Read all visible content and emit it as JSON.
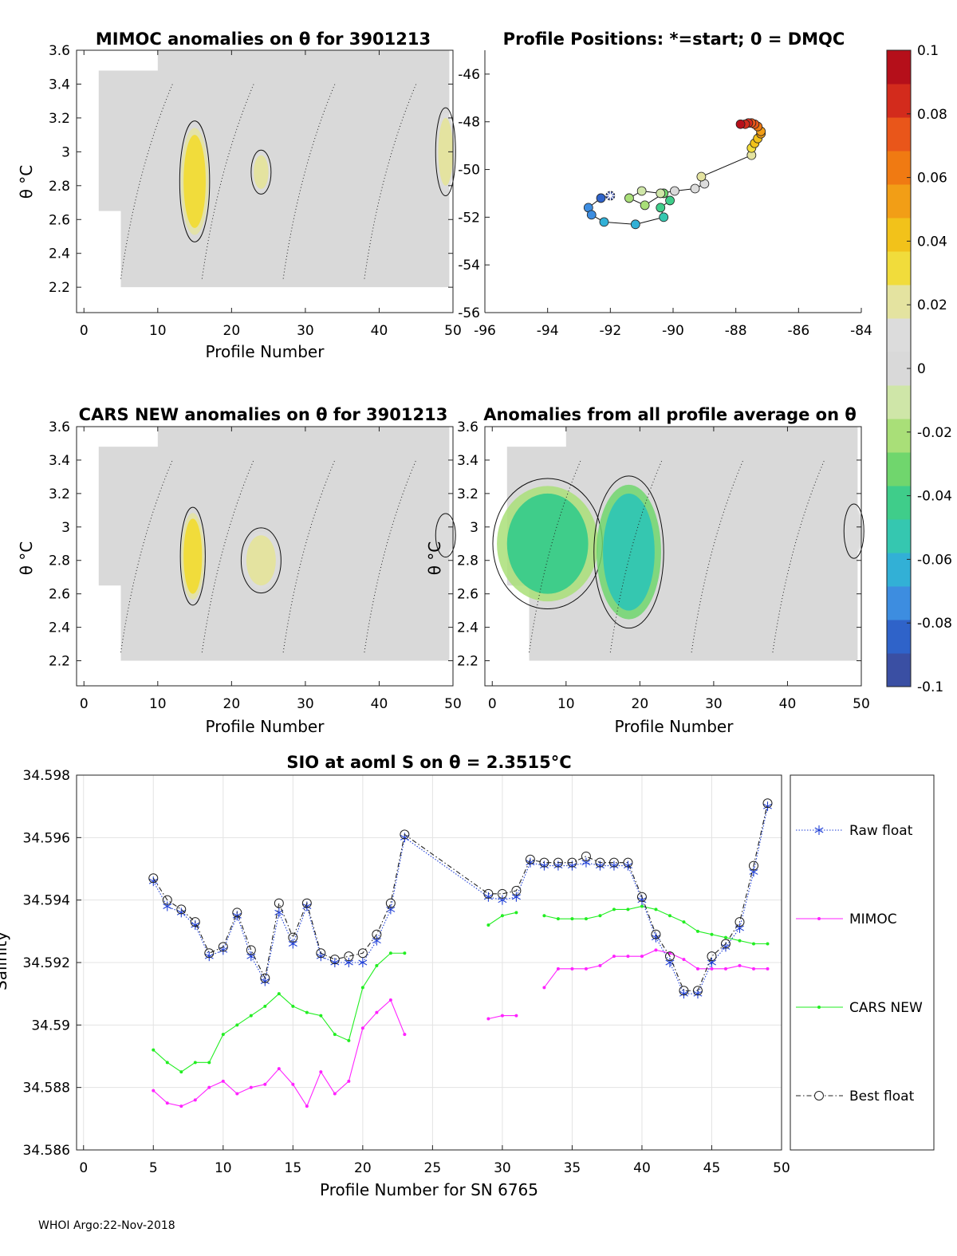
{
  "footer": "WHOI Argo:22-Nov-2018",
  "colorbar": {
    "ticks": [
      "0.1",
      "0.08",
      "0.06",
      "0.04",
      "0.02",
      "0",
      "-0.02",
      "-0.04",
      "-0.06",
      "-0.08",
      "-0.1"
    ],
    "colors": [
      "#3a4fa3",
      "#2f63c9",
      "#3d8de0",
      "#32b0d6",
      "#35c7b0",
      "#3fcd8a",
      "#70d66d",
      "#a9df78",
      "#cfe6a8",
      "#d9d9d9",
      "#dcdcdc",
      "#e4e3a0",
      "#f1dc3b",
      "#f2c21a",
      "#f29e16",
      "#f07a12",
      "#e9561a",
      "#d32b1c",
      "#b50f1a"
    ]
  },
  "chart_data": [
    {
      "type": "heatmap",
      "title": "MIMOC anomalies on θ  for 3901213",
      "xlabel": "Profile Number",
      "ylabel": "θ °C",
      "xlim": [
        -1,
        50
      ],
      "ylim": [
        2.05,
        3.6
      ],
      "xticks": [
        "0",
        "10",
        "20",
        "30",
        "40",
        "50"
      ],
      "yticks": [
        "2.2",
        "2.4",
        "2.6",
        "2.8",
        "3",
        "3.2",
        "3.4",
        "3.6"
      ],
      "features": [
        {
          "x0": 13.5,
          "x1": 16.5,
          "y0": 2.55,
          "y1": 3.1,
          "level": 0.03
        },
        {
          "x0": 23,
          "x1": 25,
          "y0": 2.78,
          "y1": 2.98,
          "level": 0.025
        },
        {
          "x0": 48,
          "x1": 50,
          "y0": 2.8,
          "y1": 3.2,
          "level": 0.02
        }
      ]
    },
    {
      "type": "scatter",
      "title": "Profile Positions: *=start; 0 = DMQC",
      "xlim": [
        -96,
        -84
      ],
      "ylim": [
        -56,
        -45
      ],
      "xticks": [
        "-96",
        "-94",
        "-92",
        "-90",
        "-88",
        "-86",
        "-84"
      ],
      "yticks": [
        "-46",
        "-48",
        "-50",
        "-52",
        "-54",
        "-56"
      ],
      "points": [
        {
          "lon": -92.0,
          "lat": -51.1
        },
        {
          "lon": -92.3,
          "lat": -51.2
        },
        {
          "lon": -92.7,
          "lat": -51.6
        },
        {
          "lon": -92.6,
          "lat": -51.9
        },
        {
          "lon": -92.2,
          "lat": -52.2
        },
        {
          "lon": -91.2,
          "lat": -52.3
        },
        {
          "lon": -90.3,
          "lat": -52.0
        },
        {
          "lon": -90.4,
          "lat": -51.6
        },
        {
          "lon": -90.1,
          "lat": -51.3
        },
        {
          "lon": -90.3,
          "lat": -51.0
        },
        {
          "lon": -90.9,
          "lat": -51.5
        },
        {
          "lon": -91.4,
          "lat": -51.2
        },
        {
          "lon": -91.0,
          "lat": -50.9
        },
        {
          "lon": -90.4,
          "lat": -51.0
        },
        {
          "lon": -89.95,
          "lat": -50.9
        },
        {
          "lon": -89.3,
          "lat": -50.8
        },
        {
          "lon": -89.0,
          "lat": -50.6
        },
        {
          "lon": -89.1,
          "lat": -50.3
        },
        {
          "lon": -87.5,
          "lat": -49.4
        },
        {
          "lon": -87.5,
          "lat": -49.1
        },
        {
          "lon": -87.4,
          "lat": -48.9
        },
        {
          "lon": -87.3,
          "lat": -48.7
        },
        {
          "lon": -87.2,
          "lat": -48.5
        },
        {
          "lon": -87.2,
          "lat": -48.4
        },
        {
          "lon": -87.3,
          "lat": -48.2
        },
        {
          "lon": -87.4,
          "lat": -48.1
        },
        {
          "lon": -87.5,
          "lat": -48.05
        },
        {
          "lon": -87.6,
          "lat": -48.05
        },
        {
          "lon": -87.7,
          "lat": -48.1
        },
        {
          "lon": -87.85,
          "lat": -48.1
        }
      ]
    },
    {
      "type": "heatmap",
      "title": "CARS NEW anomalies on θ for 3901213",
      "xlabel": "Profile Number",
      "ylabel": "θ °C",
      "xlim": [
        -1,
        50
      ],
      "ylim": [
        2.05,
        3.6
      ],
      "xticks": [
        "0",
        "10",
        "20",
        "30",
        "40",
        "50"
      ],
      "yticks": [
        "2.2",
        "2.4",
        "2.6",
        "2.8",
        "3",
        "3.2",
        "3.4",
        "3.6"
      ],
      "features": [
        {
          "x0": 13.5,
          "x1": 16,
          "y0": 2.6,
          "y1": 3.05,
          "level": 0.03
        },
        {
          "x0": 22,
          "x1": 26,
          "y0": 2.65,
          "y1": 2.95,
          "level": 0.025
        },
        {
          "x0": 48,
          "x1": 50,
          "y0": 2.85,
          "y1": 3.05,
          "level": 0.015
        }
      ]
    },
    {
      "type": "heatmap",
      "title": "Anomalies from all profile average on θ",
      "xlabel": "Profile Number",
      "ylabel": "θ °C",
      "xlim": [
        -1,
        50
      ],
      "ylim": [
        2.05,
        3.6
      ],
      "xticks": [
        "0",
        "10",
        "20",
        "30",
        "40",
        "50"
      ],
      "yticks": [
        "2.2",
        "2.4",
        "2.6",
        "2.8",
        "3",
        "3.2",
        "3.4",
        "3.6"
      ],
      "features": [
        {
          "x0": 2,
          "x1": 13,
          "y0": 2.6,
          "y1": 3.2,
          "level": -0.04
        },
        {
          "x0": 15,
          "x1": 22,
          "y0": 2.5,
          "y1": 3.2,
          "level": -0.05
        },
        {
          "x0": 48,
          "x1": 50,
          "y0": 2.85,
          "y1": 3.1,
          "level": 0.01
        }
      ]
    },
    {
      "type": "line",
      "title": "SIO at aoml S on θ = 2.3515°C",
      "xlabel": "Profile Number for SN 6765",
      "ylabel": "Salinity",
      "xlim": [
        -0.5,
        50
      ],
      "ylim": [
        34.586,
        34.598
      ],
      "xticks": [
        "0",
        "5",
        "10",
        "15",
        "20",
        "25",
        "30",
        "35",
        "40",
        "45",
        "50"
      ],
      "yticks": [
        "34.586",
        "34.588",
        "34.59",
        "34.592",
        "34.594",
        "34.596",
        "34.598"
      ],
      "legend": [
        "Raw float",
        "MIMOC",
        "CARS NEW",
        "Best float"
      ],
      "series": [
        {
          "name": "Raw float",
          "color": "#1f3fd6",
          "x": [
            5,
            6,
            7,
            8,
            9,
            10,
            11,
            12,
            13,
            14,
            15,
            16,
            17,
            18,
            19,
            20,
            21,
            22,
            23,
            29,
            30,
            31,
            32,
            33,
            34,
            35,
            36,
            37,
            38,
            39,
            40,
            41,
            42,
            43,
            44,
            45,
            46,
            47,
            48,
            49
          ],
          "y": [
            34.5946,
            34.5938,
            34.5936,
            34.5932,
            34.5922,
            34.5924,
            34.5935,
            34.5922,
            34.5914,
            34.5936,
            34.5926,
            34.5938,
            34.5922,
            34.592,
            34.592,
            34.592,
            34.5927,
            34.5937,
            34.596,
            34.5941,
            34.594,
            34.5941,
            34.5952,
            34.5951,
            34.5951,
            34.5951,
            34.5952,
            34.5951,
            34.5951,
            34.5951,
            34.594,
            34.5928,
            34.592,
            34.591,
            34.591,
            34.592,
            34.5925,
            34.5931,
            34.5949,
            34.597
          ]
        },
        {
          "name": "MIMOC",
          "color": "#ff22ff",
          "x": [
            5,
            6,
            7,
            8,
            9,
            10,
            11,
            12,
            13,
            14,
            15,
            16,
            17,
            18,
            19,
            20,
            21,
            22,
            23,
            29,
            30,
            31,
            33,
            34,
            35,
            36,
            37,
            38,
            39,
            40,
            41,
            42,
            43,
            44,
            45,
            46,
            47,
            48,
            49
          ],
          "y": [
            34.5879,
            34.5875,
            34.5874,
            34.5876,
            34.588,
            34.5882,
            34.5878,
            34.588,
            34.5881,
            34.5886,
            34.5881,
            34.5874,
            34.5885,
            34.5878,
            34.5882,
            34.5899,
            34.5904,
            34.5908,
            34.5897,
            34.5902,
            34.5903,
            34.5903,
            34.5912,
            34.5918,
            34.5918,
            34.5918,
            34.5919,
            34.5922,
            34.5922,
            34.5922,
            34.5924,
            34.5923,
            34.5921,
            34.5918,
            34.5918,
            34.5918,
            34.5919,
            34.5918,
            34.5918
          ]
        },
        {
          "name": "CARS NEW",
          "color": "#22ee22",
          "x": [
            5,
            6,
            7,
            8,
            9,
            10,
            11,
            12,
            13,
            14,
            15,
            16,
            17,
            18,
            19,
            20,
            21,
            22,
            23,
            29,
            30,
            31,
            33,
            34,
            35,
            36,
            37,
            38,
            39,
            40,
            41,
            42,
            43,
            44,
            45,
            46,
            47,
            48,
            49
          ],
          "y": [
            34.5892,
            34.5888,
            34.5885,
            34.5888,
            34.5888,
            34.5897,
            34.59,
            34.5903,
            34.5906,
            34.591,
            34.5906,
            34.5904,
            34.5903,
            34.5897,
            34.5895,
            34.5912,
            34.5919,
            34.5923,
            34.5923,
            34.5932,
            34.5935,
            34.5936,
            34.5935,
            34.5934,
            34.5934,
            34.5934,
            34.5935,
            34.5937,
            34.5937,
            34.5938,
            34.5937,
            34.5935,
            34.5933,
            34.593,
            34.5929,
            34.5928,
            34.5927,
            34.5926,
            34.5926
          ]
        },
        {
          "name": "Best float",
          "color": "#222222",
          "x": [
            5,
            6,
            7,
            8,
            9,
            10,
            11,
            12,
            13,
            14,
            15,
            16,
            17,
            18,
            19,
            20,
            21,
            22,
            23,
            29,
            30,
            31,
            32,
            33,
            34,
            35,
            36,
            37,
            38,
            39,
            40,
            41,
            42,
            43,
            44,
            45,
            46,
            47,
            48,
            49
          ],
          "y": [
            34.5947,
            34.594,
            34.5937,
            34.5933,
            34.5923,
            34.5925,
            34.5936,
            34.5924,
            34.5915,
            34.5939,
            34.5928,
            34.5939,
            34.5923,
            34.5921,
            34.5922,
            34.5923,
            34.5929,
            34.5939,
            34.5961,
            34.5942,
            34.5942,
            34.5943,
            34.5953,
            34.5952,
            34.5952,
            34.5952,
            34.5954,
            34.5952,
            34.5952,
            34.5952,
            34.5941,
            34.5929,
            34.5922,
            34.5911,
            34.5911,
            34.5922,
            34.5926,
            34.5933,
            34.5951,
            34.5971
          ]
        }
      ]
    }
  ]
}
